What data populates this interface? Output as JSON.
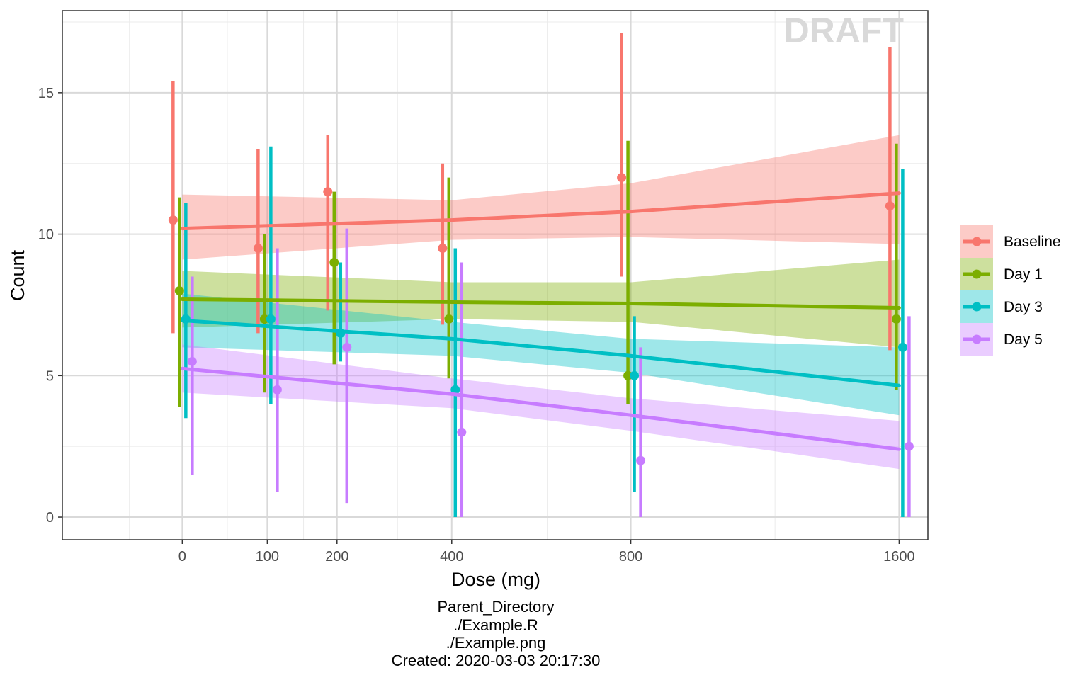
{
  "chart_data": {
    "type": "line",
    "xlabel": "Dose (mg)",
    "ylabel": "Count",
    "watermark": "DRAFT",
    "x_ticks": [
      0,
      100,
      200,
      400,
      800,
      1600
    ],
    "y_ticks": [
      0,
      5,
      10,
      15
    ],
    "xlim": [
      -100,
      1700
    ],
    "ylim": [
      -0.8,
      17.9
    ],
    "grid": true,
    "legend_position": "right",
    "series": [
      {
        "name": "Baseline",
        "color": "#F8766D",
        "points": [
          {
            "x": 0,
            "y": 10.5,
            "lo": 6.5,
            "hi": 15.4
          },
          {
            "x": 100,
            "y": 9.5,
            "lo": 6.5,
            "hi": 13.0
          },
          {
            "x": 200,
            "y": 11.5,
            "lo": 7.3,
            "hi": 13.5
          },
          {
            "x": 400,
            "y": 9.5,
            "lo": 6.8,
            "hi": 12.5
          },
          {
            "x": 800,
            "y": 12.0,
            "lo": 8.5,
            "hi": 17.1
          },
          {
            "x": 1600,
            "y": 11.0,
            "lo": 5.9,
            "hi": 16.6
          }
        ],
        "fit": [
          {
            "x": 0,
            "y": 10.2,
            "lo": 9.1,
            "hi": 11.4
          },
          {
            "x": 400,
            "y": 10.5,
            "lo": 9.8,
            "hi": 11.2
          },
          {
            "x": 800,
            "y": 10.8,
            "lo": 9.9,
            "hi": 11.8
          },
          {
            "x": 1600,
            "y": 11.45,
            "lo": 9.65,
            "hi": 13.5
          }
        ]
      },
      {
        "name": "Day 1",
        "color": "#7CAE00",
        "points": [
          {
            "x": 0,
            "y": 8.0,
            "lo": 3.9,
            "hi": 11.3
          },
          {
            "x": 100,
            "y": 7.0,
            "lo": 4.4,
            "hi": 10.0
          },
          {
            "x": 200,
            "y": 9.0,
            "lo": 5.4,
            "hi": 11.5
          },
          {
            "x": 400,
            "y": 7.0,
            "lo": 4.9,
            "hi": 12.0
          },
          {
            "x": 800,
            "y": 5.0,
            "lo": 4.0,
            "hi": 13.3
          },
          {
            "x": 1600,
            "y": 7.0,
            "lo": 4.5,
            "hi": 13.2
          }
        ],
        "fit": [
          {
            "x": 0,
            "y": 7.7,
            "lo": 6.7,
            "hi": 8.7
          },
          {
            "x": 400,
            "y": 7.6,
            "lo": 7.0,
            "hi": 8.3
          },
          {
            "x": 800,
            "y": 7.55,
            "lo": 6.9,
            "hi": 8.3
          },
          {
            "x": 1600,
            "y": 7.4,
            "lo": 6.0,
            "hi": 9.1
          }
        ]
      },
      {
        "name": "Day 3",
        "color": "#00BFC4",
        "points": [
          {
            "x": 0,
            "y": 7.0,
            "lo": 3.5,
            "hi": 11.1
          },
          {
            "x": 100,
            "y": 7.0,
            "lo": 4.0,
            "hi": 13.1
          },
          {
            "x": 200,
            "y": 6.5,
            "lo": 5.5,
            "hi": 9.0
          },
          {
            "x": 400,
            "y": 4.5,
            "lo": 0.0,
            "hi": 9.5
          },
          {
            "x": 800,
            "y": 5.0,
            "lo": 0.9,
            "hi": 7.1
          },
          {
            "x": 1600,
            "y": 6.0,
            "lo": 0.0,
            "hi": 12.3
          }
        ],
        "fit": [
          {
            "x": 0,
            "y": 6.95,
            "lo": 6.0,
            "hi": 7.9
          },
          {
            "x": 400,
            "y": 6.3,
            "lo": 5.7,
            "hi": 6.9
          },
          {
            "x": 800,
            "y": 5.7,
            "lo": 5.1,
            "hi": 6.3
          },
          {
            "x": 1600,
            "y": 4.65,
            "lo": 3.6,
            "hi": 6.0
          }
        ]
      },
      {
        "name": "Day 5",
        "color": "#C77CFF",
        "points": [
          {
            "x": 0,
            "y": 5.5,
            "lo": 1.5,
            "hi": 8.5
          },
          {
            "x": 100,
            "y": 4.5,
            "lo": 0.9,
            "hi": 9.5
          },
          {
            "x": 200,
            "y": 6.0,
            "lo": 0.5,
            "hi": 10.2
          },
          {
            "x": 400,
            "y": 3.0,
            "lo": 0.0,
            "hi": 9.0
          },
          {
            "x": 800,
            "y": 2.0,
            "lo": 0.0,
            "hi": 6.0
          },
          {
            "x": 1600,
            "y": 2.5,
            "lo": 0.0,
            "hi": 7.1
          }
        ],
        "fit": [
          {
            "x": 0,
            "y": 5.25,
            "lo": 4.4,
            "hi": 6.1
          },
          {
            "x": 400,
            "y": 4.35,
            "lo": 3.85,
            "hi": 4.9
          },
          {
            "x": 800,
            "y": 3.6,
            "lo": 3.05,
            "hi": 4.2
          },
          {
            "x": 1600,
            "y": 2.4,
            "lo": 1.7,
            "hi": 3.4
          }
        ]
      }
    ]
  },
  "caption": {
    "line1": "Parent_Directory",
    "line2": "./Example.R",
    "line3": "./Example.png",
    "line4": "Created: 2020-03-03 20:17:30"
  }
}
